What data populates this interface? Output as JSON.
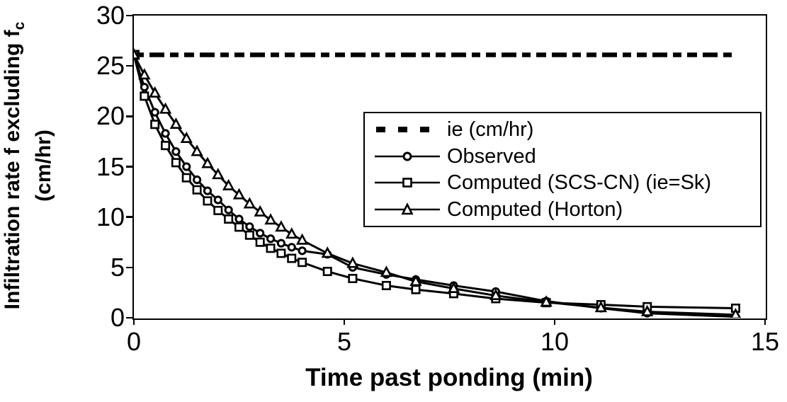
{
  "background_color": "#ffffff",
  "foreground_color": "#000000",
  "chart_data": {
    "type": "line",
    "title": "",
    "xlabel": "Time past ponding (min)",
    "ylabel": "Infiltration rate f excluding fc (cm/hr)",
    "ylabel_line1": "Infiltration rate f excluding f",
    "ylabel_subscript": "c",
    "ylabel_line2": "(cm/hr)",
    "xlim": [
      0,
      15
    ],
    "ylim": [
      0,
      30
    ],
    "xticks": [
      0,
      5,
      10,
      15
    ],
    "yticks": [
      0,
      5,
      10,
      15,
      20,
      25,
      30
    ],
    "grid": false,
    "legend_position": "upper-right-inside",
    "x": [
      0,
      0.25,
      0.5,
      0.75,
      1,
      1.25,
      1.5,
      1.75,
      2,
      2.25,
      2.5,
      2.75,
      3,
      3.25,
      3.5,
      3.75,
      4,
      4.6,
      5.2,
      6,
      6.7,
      7.6,
      8.6,
      9.8,
      11.1,
      12.2,
      14.3
    ],
    "series": [
      {
        "name": "ie (cm/hr)",
        "style": "thick-dash-dot",
        "marker": "filled-square-at-start",
        "constant_value": 26.1,
        "x_start": 0,
        "x_end": 14.25
      },
      {
        "name": "Observed",
        "style": "solid",
        "marker": "open-circle",
        "values": [
          26.1,
          22.9,
          20.4,
          18.3,
          16.5,
          15.0,
          13.7,
          12.6,
          11.7,
          10.7,
          9.8,
          9.05,
          8.4,
          7.85,
          7.4,
          7.0,
          6.65,
          6.3,
          5.0,
          4.3,
          3.8,
          3.2,
          2.6,
          1.65,
          0.95,
          0.45,
          0.1
        ]
      },
      {
        "name": "Computed (SCS-CN) (ie=Sk)",
        "style": "solid",
        "marker": "open-square",
        "values": [
          26.1,
          22.0,
          19.2,
          17.1,
          15.4,
          13.9,
          12.7,
          11.6,
          10.65,
          9.8,
          9.0,
          8.2,
          7.5,
          6.9,
          6.4,
          5.9,
          5.5,
          4.6,
          3.9,
          3.2,
          2.8,
          2.4,
          1.9,
          1.5,
          1.3,
          1.1,
          0.95
        ]
      },
      {
        "name": "Computed (Horton)",
        "style": "solid",
        "marker": "open-triangle",
        "values": [
          26.1,
          24.1,
          22.3,
          20.7,
          19.2,
          17.8,
          16.5,
          15.3,
          14.2,
          13.1,
          12.2,
          11.3,
          10.5,
          9.7,
          9.0,
          8.3,
          7.7,
          6.4,
          5.4,
          4.5,
          3.6,
          2.9,
          2.2,
          1.55,
          1.0,
          0.6,
          0.3
        ]
      }
    ]
  }
}
